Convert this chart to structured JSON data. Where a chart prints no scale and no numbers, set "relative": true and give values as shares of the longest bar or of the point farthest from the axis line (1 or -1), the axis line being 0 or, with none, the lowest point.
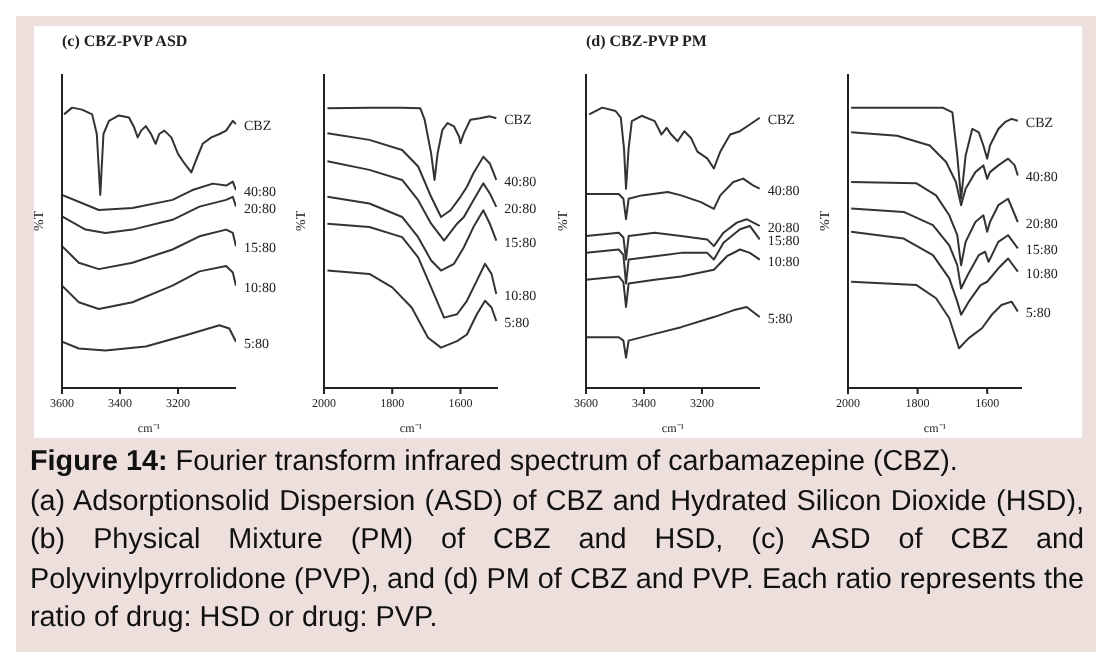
{
  "chart_data": [
    {
      "type": "line",
      "relative": true,
      "title": "(c) CBZ-PVP ASD",
      "xlabel": "cm⁻¹",
      "ylabel": "%T",
      "xlim": [
        3600,
        3000
      ],
      "xticks": [
        3600,
        3400,
        3200
      ],
      "annotations": [
        "Figure 14:",
        "Fourier transform infrared spectrum of carbamazepine (CBZ).",
        "(a) Adsorptionsolid Dispersion (ASD) of CBZ and Hydrated Silicon Dioxide (HSD), (b) Physical Mixture (PM) of CBZ and HSD, (c) ASD of CBZ and Polyvinylpyrrolidone (PVP), and (d) PM of CBZ and PVP. Each ratio represents the ratio of drug: HSD or drug: PVP."
      ],
      "series": [
        {
          "name": "CBZ",
          "color": "#333333",
          "x": [
            3593,
            3565,
            3531,
            3496,
            3480,
            3468,
            3457,
            3438,
            3404,
            3369,
            3351,
            3339,
            3327,
            3311,
            3293,
            3277,
            3265,
            3247,
            3223,
            3200,
            3177,
            3154,
            3138,
            3115,
            3085,
            3057,
            3034,
            3011,
            3000
          ],
          "values": [
            0.976,
            1,
            0.993,
            0.976,
            0.906,
            0.689,
            0.906,
            0.953,
            0.972,
            0.965,
            0.929,
            0.894,
            0.918,
            0.934,
            0.906,
            0.871,
            0.906,
            0.918,
            0.894,
            0.835,
            0.8,
            0.769,
            0.812,
            0.871,
            0.894,
            0.906,
            0.918,
            0.953,
            0.941
          ]
        },
        {
          "name": "40:80",
          "color": "#333333",
          "x": [
            3600,
            3473,
            3357,
            3219,
            3150,
            3080,
            3034,
            3011,
            3000
          ],
          "values": [
            0.689,
            0.635,
            0.642,
            0.671,
            0.706,
            0.729,
            0.722,
            0.736,
            0.706
          ]
        },
        {
          "name": "20:80",
          "color": "#333333",
          "x": [
            3600,
            3519,
            3450,
            3357,
            3219,
            3126,
            3034,
            3011,
            3000
          ],
          "values": [
            0.612,
            0.565,
            0.553,
            0.565,
            0.6,
            0.647,
            0.671,
            0.682,
            0.647
          ]
        },
        {
          "name": "15:80",
          "color": "#333333",
          "x": [
            3600,
            3542,
            3473,
            3357,
            3219,
            3126,
            3034,
            3011,
            3000
          ],
          "values": [
            0.506,
            0.447,
            0.424,
            0.447,
            0.494,
            0.541,
            0.565,
            0.553,
            0.506
          ]
        },
        {
          "name": "10:80",
          "color": "#333333",
          "x": [
            3600,
            3542,
            3473,
            3357,
            3219,
            3126,
            3034,
            3011,
            3000
          ],
          "values": [
            0.365,
            0.306,
            0.282,
            0.306,
            0.365,
            0.416,
            0.435,
            0.412,
            0.365
          ]
        },
        {
          "name": "5:80",
          "color": "#333333",
          "x": [
            3600,
            3542,
            3450,
            3311,
            3173,
            3057,
            3023,
            3000
          ],
          "values": [
            0.165,
            0.141,
            0.134,
            0.148,
            0.188,
            0.224,
            0.212,
            0.165
          ]
        }
      ]
    },
    {
      "type": "line",
      "relative": true,
      "xlabel": "cm⁻¹",
      "ylabel": "%T",
      "xlim": [
        2000,
        1490
      ],
      "xticks": [
        2000,
        1800,
        1600
      ],
      "series": [
        {
          "name": "CBZ",
          "color": "#333333",
          "x": [
            1990,
            1867,
            1771,
            1718,
            1705,
            1686,
            1676,
            1667,
            1653,
            1638,
            1619,
            1604,
            1600,
            1590,
            1571,
            1543,
            1514,
            1495
          ],
          "values": [
            0.998,
            1,
            1,
            0.998,
            0.957,
            0.837,
            0.742,
            0.837,
            0.921,
            0.945,
            0.933,
            0.897,
            0.873,
            0.909,
            0.957,
            0.962,
            0.969,
            0.962
          ]
        },
        {
          "name": "40:80",
          "color": "#333333",
          "x": [
            1990,
            1867,
            1771,
            1724,
            1686,
            1657,
            1629,
            1600,
            1581,
            1562,
            1533,
            1514,
            1495
          ],
          "values": [
            0.909,
            0.885,
            0.849,
            0.79,
            0.682,
            0.61,
            0.634,
            0.682,
            0.718,
            0.766,
            0.825,
            0.801,
            0.742
          ]
        },
        {
          "name": "20:80",
          "color": "#333333",
          "x": [
            1990,
            1867,
            1771,
            1724,
            1686,
            1648,
            1610,
            1590,
            1562,
            1533,
            1514,
            1495
          ],
          "values": [
            0.809,
            0.778,
            0.742,
            0.67,
            0.586,
            0.526,
            0.586,
            0.61,
            0.67,
            0.73,
            0.694,
            0.646
          ]
        },
        {
          "name": "15:80",
          "color": "#333333",
          "x": [
            1990,
            1867,
            1771,
            1724,
            1686,
            1657,
            1619,
            1590,
            1562,
            1533,
            1514,
            1495
          ],
          "values": [
            0.682,
            0.658,
            0.61,
            0.538,
            0.455,
            0.419,
            0.443,
            0.502,
            0.574,
            0.634,
            0.586,
            0.526
          ]
        },
        {
          "name": "10:80",
          "color": "#333333",
          "x": [
            1990,
            1867,
            1771,
            1724,
            1686,
            1648,
            1610,
            1581,
            1552,
            1528,
            1509,
            1495
          ],
          "values": [
            0.586,
            0.574,
            0.538,
            0.466,
            0.359,
            0.251,
            0.263,
            0.311,
            0.383,
            0.443,
            0.407,
            0.335
          ]
        },
        {
          "name": "5:80",
          "color": "#333333",
          "x": [
            1990,
            1867,
            1800,
            1743,
            1695,
            1657,
            1610,
            1581,
            1552,
            1528,
            1509,
            1495
          ],
          "values": [
            0.419,
            0.407,
            0.359,
            0.287,
            0.179,
            0.144,
            0.167,
            0.191,
            0.263,
            0.311,
            0.287,
            0.239
          ]
        }
      ]
    },
    {
      "type": "line",
      "relative": true,
      "title": "(d) CBZ-PVP PM",
      "xlabel": "cm⁻¹",
      "ylabel": "%T",
      "xlim": [
        3600,
        3000
      ],
      "xticks": [
        3600,
        3400,
        3200
      ],
      "series": [
        {
          "name": "CBZ",
          "color": "#333333",
          "x": [
            3589,
            3544,
            3498,
            3480,
            3469,
            3462,
            3453,
            3442,
            3408,
            3363,
            3340,
            3322,
            3306,
            3284,
            3261,
            3238,
            3216,
            3182,
            3159,
            3137,
            3103,
            3069,
            3035,
            3001
          ],
          "values": [
            0.976,
            1,
            0.988,
            0.964,
            0.855,
            0.711,
            0.855,
            0.952,
            0.971,
            0.952,
            0.904,
            0.928,
            0.904,
            0.88,
            0.916,
            0.892,
            0.843,
            0.819,
            0.783,
            0.843,
            0.904,
            0.916,
            0.94,
            0.964
          ]
        },
        {
          "name": "40:80",
          "color": "#333333",
          "x": [
            3600,
            3487,
            3471,
            3462,
            3453,
            3408,
            3318,
            3272,
            3204,
            3159,
            3137,
            3092,
            3058,
            3024,
            3001
          ],
          "values": [
            0.692,
            0.692,
            0.675,
            0.602,
            0.675,
            0.687,
            0.699,
            0.687,
            0.663,
            0.639,
            0.687,
            0.735,
            0.747,
            0.723,
            0.711
          ]
        },
        {
          "name": "20:80",
          "color": "#333333",
          "x": [
            3600,
            3487,
            3471,
            3462,
            3453,
            3363,
            3272,
            3182,
            3159,
            3126,
            3080,
            3046,
            3001
          ],
          "values": [
            0.542,
            0.554,
            0.537,
            0.458,
            0.542,
            0.554,
            0.542,
            0.53,
            0.506,
            0.554,
            0.59,
            0.602,
            0.578
          ]
        },
        {
          "name": "15:80",
          "color": "#333333",
          "x": [
            3600,
            3487,
            3471,
            3462,
            3453,
            3363,
            3272,
            3182,
            3159,
            3126,
            3069,
            3035,
            3001
          ],
          "values": [
            0.482,
            0.494,
            0.475,
            0.373,
            0.458,
            0.47,
            0.482,
            0.482,
            0.458,
            0.518,
            0.566,
            0.578,
            0.53
          ]
        },
        {
          "name": "10:80",
          "color": "#333333",
          "x": [
            3600,
            3487,
            3471,
            3462,
            3453,
            3363,
            3272,
            3159,
            3114,
            3069,
            3035,
            3001
          ],
          "values": [
            0.386,
            0.398,
            0.378,
            0.289,
            0.373,
            0.386,
            0.398,
            0.422,
            0.47,
            0.494,
            0.482,
            0.458
          ]
        },
        {
          "name": "5:80",
          "color": "#333333",
          "x": [
            3600,
            3487,
            3471,
            3462,
            3453,
            3363,
            3272,
            3159,
            3092,
            3046,
            3001
          ],
          "values": [
            0.181,
            0.181,
            0.169,
            0.108,
            0.169,
            0.193,
            0.217,
            0.253,
            0.277,
            0.289,
            0.253
          ]
        }
      ]
    },
    {
      "type": "line",
      "relative": true,
      "xlabel": "cm⁻¹",
      "ylabel": "%T",
      "xlim": [
        2000,
        1500
      ],
      "xticks": [
        2000,
        1800,
        1600
      ],
      "series": [
        {
          "name": "CBZ",
          "color": "#333333",
          "x": [
            1991,
            1859,
            1728,
            1700,
            1686,
            1675,
            1662,
            1643,
            1624,
            1611,
            1600,
            1592,
            1568,
            1549,
            1530,
            1512
          ],
          "values": [
            1,
            1,
            1,
            0.983,
            0.829,
            0.675,
            0.829,
            0.924,
            0.912,
            0.865,
            0.818,
            0.865,
            0.924,
            0.948,
            0.96,
            0.953
          ]
        },
        {
          "name": "40:80",
          "color": "#333333",
          "x": [
            1991,
            1859,
            1765,
            1718,
            1690,
            1675,
            1662,
            1634,
            1611,
            1600,
            1592,
            1568,
            1540,
            1521,
            1512
          ],
          "values": [
            0.912,
            0.9,
            0.865,
            0.806,
            0.735,
            0.652,
            0.711,
            0.77,
            0.794,
            0.746,
            0.77,
            0.794,
            0.818,
            0.794,
            0.758
          ]
        },
        {
          "name": "20:80",
          "color": "#333333",
          "x": [
            1991,
            1803,
            1747,
            1709,
            1686,
            1675,
            1662,
            1634,
            1611,
            1600,
            1592,
            1568,
            1540,
            1512
          ],
          "values": [
            0.735,
            0.73,
            0.687,
            0.616,
            0.545,
            0.438,
            0.521,
            0.592,
            0.616,
            0.557,
            0.592,
            0.652,
            0.675,
            0.592
          ]
        },
        {
          "name": "15:80",
          "color": "#333333",
          "x": [
            1991,
            1840,
            1756,
            1709,
            1686,
            1675,
            1656,
            1624,
            1606,
            1596,
            1568,
            1540,
            1512
          ],
          "values": [
            0.64,
            0.628,
            0.581,
            0.509,
            0.438,
            0.355,
            0.403,
            0.474,
            0.486,
            0.45,
            0.521,
            0.545,
            0.498
          ]
        },
        {
          "name": "10:80",
          "color": "#333333",
          "x": [
            1991,
            1840,
            1756,
            1709,
            1686,
            1675,
            1653,
            1619,
            1600,
            1568,
            1540,
            1512
          ],
          "values": [
            0.557,
            0.533,
            0.474,
            0.391,
            0.308,
            0.261,
            0.308,
            0.367,
            0.379,
            0.427,
            0.462,
            0.415
          ]
        },
        {
          "name": "5:80",
          "color": "#333333",
          "x": [
            1991,
            1803,
            1747,
            1709,
            1681,
            1653,
            1615,
            1587,
            1559,
            1530,
            1512
          ],
          "values": [
            0.379,
            0.367,
            0.32,
            0.249,
            0.142,
            0.178,
            0.213,
            0.261,
            0.296,
            0.308,
            0.273
          ]
        }
      ]
    }
  ]
}
